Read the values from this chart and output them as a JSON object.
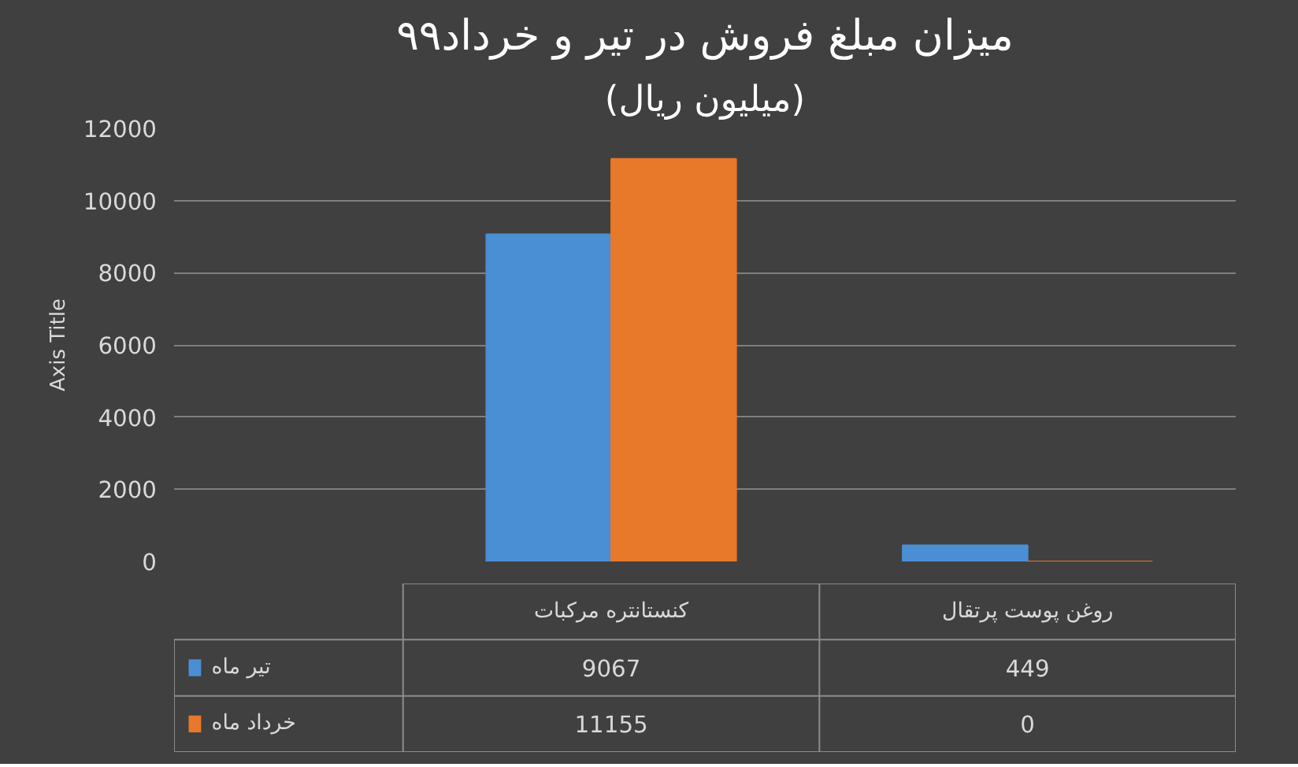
{
  "chart_data": {
    "type": "bar",
    "title": "میزان مبلغ فروش در تیر و خرداد۹۹",
    "subtitle": "(میلیون ریال)",
    "ylabel": "Axis Title",
    "categories": [
      "کنستانتره مرکبات",
      "روغن پوست پرتقال"
    ],
    "series": [
      {
        "name": "تیر ماه",
        "color": "#4a8fd4",
        "values": [
          9067,
          449
        ]
      },
      {
        "name": "خرداد ماه",
        "color": "#e8782a",
        "values": [
          11155,
          0
        ]
      }
    ],
    "ylim": [
      0,
      12000
    ],
    "yticks": [
      0,
      2000,
      4000,
      6000,
      8000,
      10000,
      12000
    ],
    "grid": "y",
    "legend": "bottom",
    "data_labels": true
  }
}
